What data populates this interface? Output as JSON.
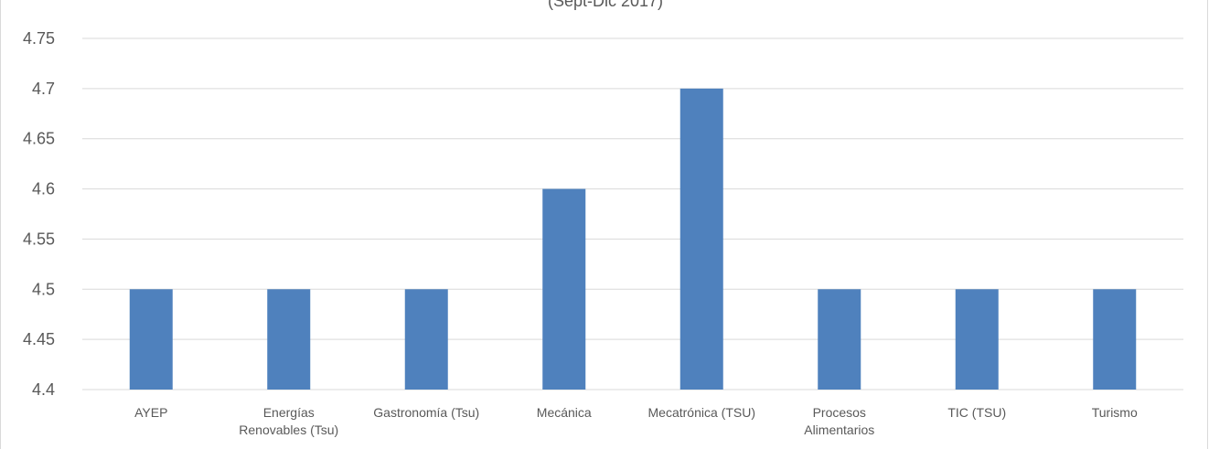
{
  "chart_data": {
    "type": "bar",
    "title": "(Sept-Dic 2017)",
    "xlabel": "",
    "ylabel": "",
    "ylim": [
      4.4,
      4.75
    ],
    "yticks": [
      "4.4",
      "4.45",
      "4.5",
      "4.55",
      "4.6",
      "4.65",
      "4.7",
      "4.75"
    ],
    "grid": true,
    "categories": [
      [
        "AYEP"
      ],
      [
        "Energías",
        "Renovables  (Tsu)"
      ],
      [
        "Gastronomía (Tsu)"
      ],
      [
        "Mecánica"
      ],
      [
        "Mecatrónica (TSU)"
      ],
      [
        "Procesos",
        "Alimentarios"
      ],
      [
        "TIC (TSU)"
      ],
      [
        "Turismo"
      ]
    ],
    "values": [
      4.5,
      4.5,
      4.5,
      4.6,
      4.7,
      4.5,
      4.5,
      4.5
    ],
    "bar_color": "#4f81bd"
  }
}
